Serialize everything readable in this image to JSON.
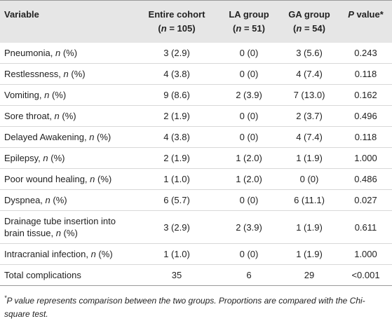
{
  "header": {
    "columns": [
      [
        "Variable"
      ],
      [
        "Entire cohort",
        "(",
        "n",
        " = 105)"
      ],
      [
        "LA group",
        "(",
        "n",
        " = 51)"
      ],
      [
        "GA group",
        "(",
        "n",
        " = 54)"
      ],
      [
        "P",
        " value*"
      ]
    ]
  },
  "table": {
    "rows": [
      [
        [
          "Pneumonia, ",
          "n",
          " (%)"
        ],
        "3 (2.9)",
        "0 (0)",
        "3 (5.6)",
        "0.243"
      ],
      [
        [
          "Restlessness, ",
          "n",
          " (%)"
        ],
        "4 (3.8)",
        "0 (0)",
        "4 (7.4)",
        "0.118"
      ],
      [
        [
          "Vomiting, ",
          "n",
          " (%)"
        ],
        "9 (8.6)",
        "2 (3.9)",
        "7 (13.0)",
        "0.162"
      ],
      [
        [
          "Sore throat, ",
          "n",
          " (%)"
        ],
        "2 (1.9)",
        "0 (0)",
        "2 (3.7)",
        "0.496"
      ],
      [
        [
          "Delayed Awakening, ",
          "n",
          " (%)"
        ],
        "4 (3.8)",
        "0 (0)",
        "4 (7.4)",
        "0.118"
      ],
      [
        [
          "Epilepsy, ",
          "n",
          " (%)"
        ],
        "2 (1.9)",
        "1 (2.0)",
        "1 (1.9)",
        "1.000"
      ],
      [
        [
          "Poor wound healing, ",
          "n",
          " (%)"
        ],
        "1 (1.0)",
        "1 (2.0)",
        "0 (0)",
        "0.486"
      ],
      [
        [
          "Dyspnea, ",
          "n",
          " (%)"
        ],
        "6 (5.7)",
        "0 (0)",
        "6 (11.1)",
        "0.027"
      ],
      [
        [
          "Drainage tube insertion into brain tissue, ",
          "n",
          " (%)"
        ],
        "3 (2.9)",
        "2 (3.9)",
        "1 (1.9)",
        "0.611"
      ],
      [
        [
          "Intracranial infection, ",
          "n",
          " (%)"
        ],
        "1 (1.0)",
        "0 (0)",
        "1 (1.9)",
        "1.000"
      ],
      [
        [
          "Total complications"
        ],
        "35",
        "6",
        "29",
        "<0.001"
      ]
    ]
  },
  "footnote": {
    "marker": "*",
    "text": "P value represents comparison between the two groups. Proportions are compared with the Chi-square test."
  }
}
